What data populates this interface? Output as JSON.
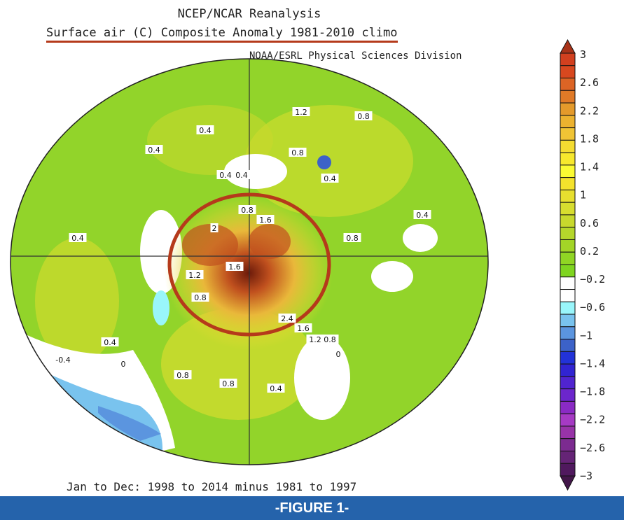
{
  "header": {
    "title": "NCEP/NCAR Reanalysis",
    "subtitle": "Surface air (C) Composite Anomaly 1981-2010 climo",
    "credit": "NOAA/ESRL Physical Sciences Division"
  },
  "caption": "Jan to Dec: 1998 to 2014 minus 1981 to 1997",
  "footer": "-FIGURE 1-",
  "map": {
    "projection": "polar stereographic (Northern Hemisphere)",
    "highlight_circle_color": "#b53a1b",
    "contour_labels": [
      "0.4",
      "0.4",
      "1.2",
      "0.8",
      "0.8",
      "0.4",
      "0.4",
      "0.4",
      "0.4",
      "0.4",
      "0.8",
      "1.6",
      "2",
      "0.8",
      "1.6",
      "1.2",
      "0.8",
      "2.4",
      "1.6",
      "1.2",
      "0.8",
      "0.4",
      "-0.4",
      "0",
      "0",
      "0.8",
      "0.8",
      "0.4"
    ]
  },
  "colorbar": {
    "labels": [
      "3",
      "2.6",
      "2.2",
      "1.8",
      "1.4",
      "1",
      "0.6",
      "0.2",
      "-0.2",
      "-0.6",
      "-1",
      "-1.4",
      "-1.8",
      "-2.2",
      "-2.6",
      "-3"
    ],
    "colors": [
      "#d2401f",
      "#d8481f",
      "#dc6425",
      "#e07a27",
      "#e49a2b",
      "#ecb22f",
      "#f0c435",
      "#f4dc31",
      "#f7e82d",
      "#fbfb33",
      "#f4e22c",
      "#e7df2f",
      "#d7dd2f",
      "#c8d92d",
      "#b5d72b",
      "#a3d527",
      "#90d524",
      "#7fd520",
      "#ffffff",
      "#ffffff",
      "#99f6fb",
      "#79c3ee",
      "#5b95df",
      "#3c62c8",
      "#2232d8",
      "#3124d2",
      "#5024d0",
      "#6c26cc",
      "#8a2ac4",
      "#a63ac4",
      "#9833a8",
      "#7c2b90",
      "#652476",
      "#50195e"
    ],
    "top_arrow_color": "#a83218",
    "bottom_arrow_color": "#421649"
  }
}
